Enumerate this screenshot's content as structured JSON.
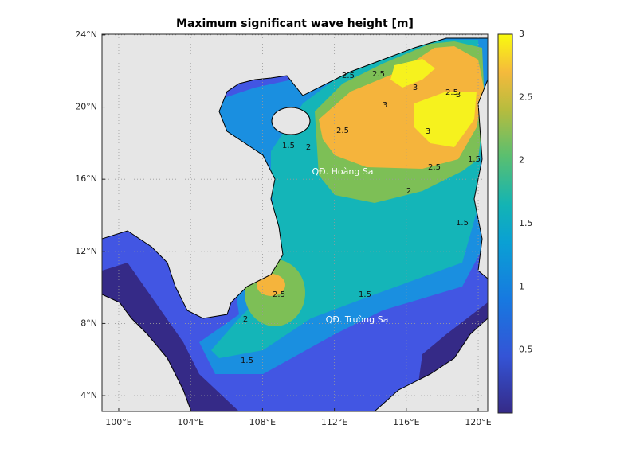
{
  "title": "Maximum significant wave height [m]",
  "map": {
    "xlim": [
      99.07,
      120.53
    ],
    "ylim": [
      3.12,
      24.04
    ],
    "xticks": [
      {
        "value": 100,
        "label": "100°E"
      },
      {
        "value": 104,
        "label": "104°E"
      },
      {
        "value": 108,
        "label": "108°E"
      },
      {
        "value": 112,
        "label": "112°E"
      },
      {
        "value": 116,
        "label": "116°E"
      },
      {
        "value": 120,
        "label": "120°E"
      }
    ],
    "yticks": [
      {
        "value": 4,
        "label": "4°N"
      },
      {
        "value": 8,
        "label": "8°N"
      },
      {
        "value": 12,
        "label": "12°N"
      },
      {
        "value": 16,
        "label": "16°N"
      },
      {
        "value": 20,
        "label": "20°N"
      },
      {
        "value": 24,
        "label": "24°N"
      }
    ],
    "grid": true,
    "places": [
      "QĐ. Hoàng Sa",
      "QĐ. Trường Sa"
    ],
    "contour_labels": [
      2.5,
      2.5,
      2.5,
      2.5,
      2.5,
      2.5,
      3,
      3,
      3,
      3,
      2,
      2,
      2,
      1.5,
      1.5,
      1.5,
      1.5,
      1.5
    ]
  },
  "colorbar": {
    "lim": [
      0,
      3
    ],
    "ticks": [
      0.5,
      1,
      1.5,
      2,
      2.5,
      3
    ]
  }
}
